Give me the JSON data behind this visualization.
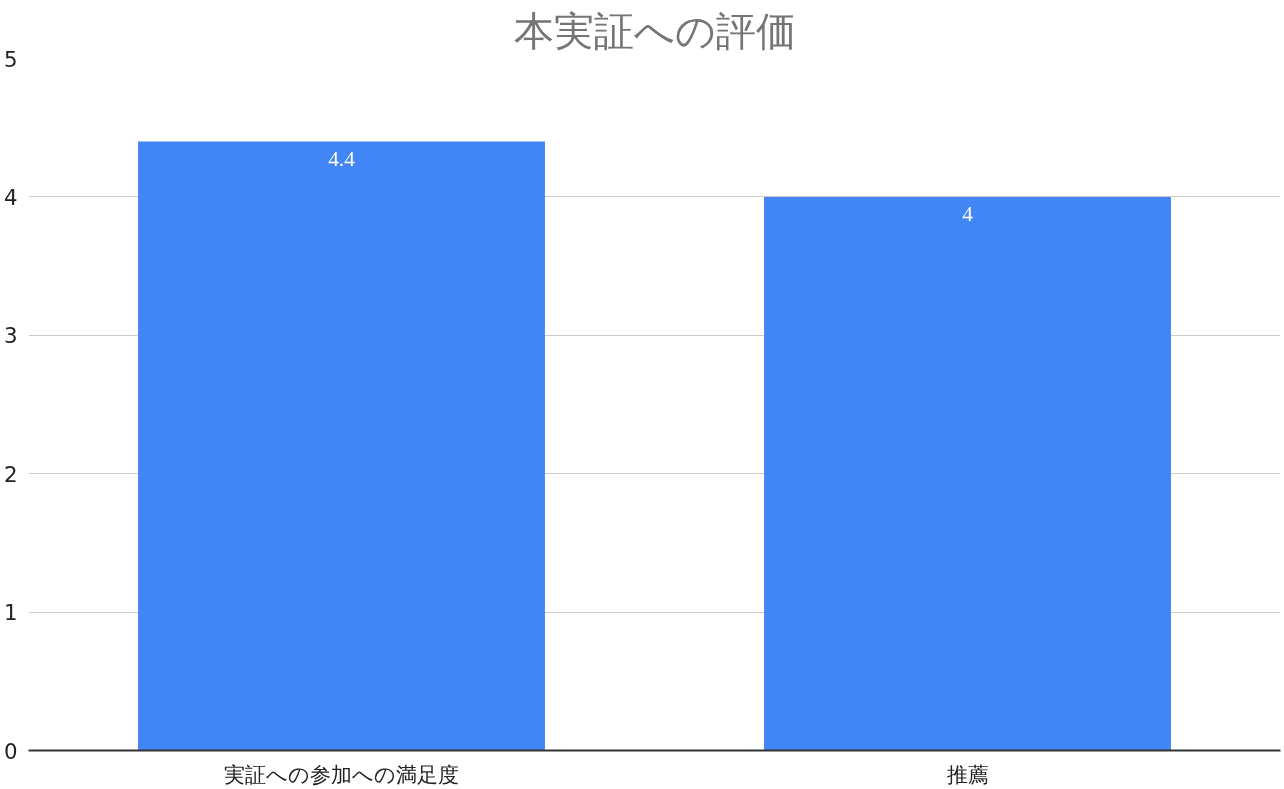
{
  "chart_data": {
    "type": "bar",
    "title": "本実証への評価",
    "categories": [
      "実証への参加への満足度",
      "推薦"
    ],
    "values": [
      4.4,
      4
    ],
    "color": "#4285f4",
    "ylim": [
      0,
      5
    ],
    "yticks": [
      0,
      1,
      2,
      3,
      4,
      5
    ],
    "grid": "y",
    "data_labels": true
  }
}
